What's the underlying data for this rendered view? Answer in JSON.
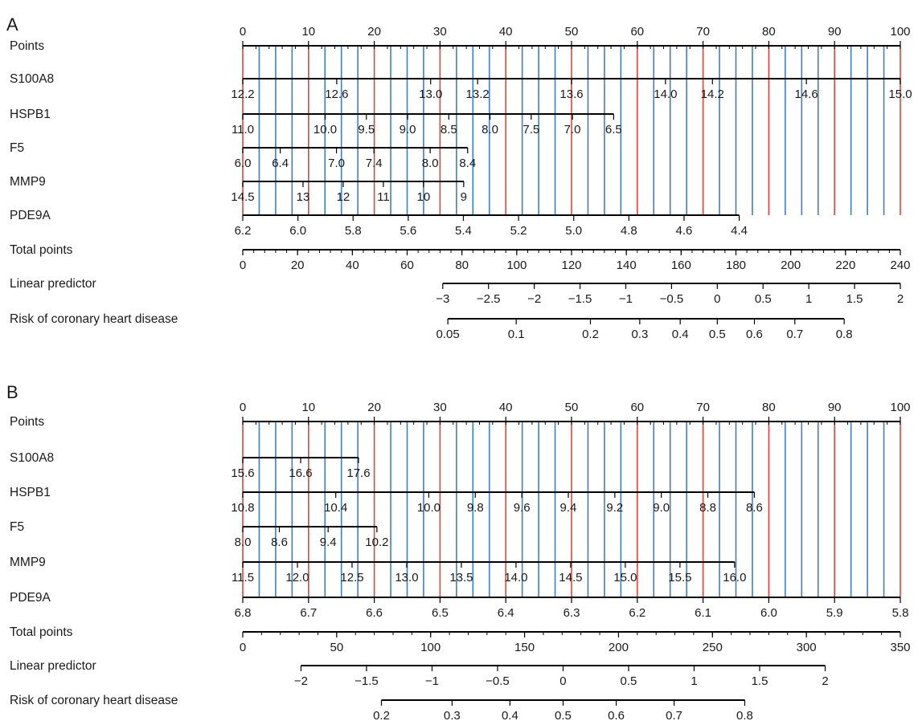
{
  "colors": {
    "axis": "#000000",
    "grid_blue": "#3f7fbf",
    "grid_red": "#e0443a",
    "text": "#1a1a1a"
  },
  "chart_data": [
    {
      "type": "nomogram",
      "panel_label": "A",
      "grid": "vertical lines at every 2.5 points (red every 10, blue otherwise)",
      "rows": [
        {
          "label": "Points",
          "kind": "points",
          "range": [
            0,
            100
          ],
          "ticks": [
            {
              "v": 0,
              "t": "0"
            },
            {
              "v": 10,
              "t": "10"
            },
            {
              "v": 20,
              "t": "20"
            },
            {
              "v": 30,
              "t": "30"
            },
            {
              "v": 40,
              "t": "40"
            },
            {
              "v": 50,
              "t": "50"
            },
            {
              "v": 60,
              "t": "60"
            },
            {
              "v": 70,
              "t": "70"
            },
            {
              "v": 80,
              "t": "80"
            },
            {
              "v": 90,
              "t": "90"
            },
            {
              "v": 100,
              "t": "100"
            }
          ]
        },
        {
          "label": "S100A8",
          "kind": "variable",
          "values": [
            12.2,
            15.0
          ],
          "points": [
            0,
            100
          ],
          "ticks": [
            {
              "v": 12.2,
              "t": "12.2"
            },
            {
              "v": 12.6,
              "t": "12.6"
            },
            {
              "v": 13.0,
              "t": "13.0"
            },
            {
              "v": 13.2,
              "t": "13.2"
            },
            {
              "v": 13.6,
              "t": "13.6"
            },
            {
              "v": 14.0,
              "t": "14.0"
            },
            {
              "v": 14.2,
              "t": "14.2"
            },
            {
              "v": 14.6,
              "t": "14.6"
            },
            {
              "v": 15.0,
              "t": "15.0"
            }
          ]
        },
        {
          "label": "HSPB1",
          "kind": "variable",
          "values": [
            11.0,
            6.5
          ],
          "points": [
            0,
            56.4
          ],
          "ticks": [
            {
              "v": 11.0,
              "t": "11.0"
            },
            {
              "v": 10.0,
              "t": "10.0"
            },
            {
              "v": 9.5,
              "t": "9.5"
            },
            {
              "v": 9.0,
              "t": "9.0"
            },
            {
              "v": 8.5,
              "t": "8.5"
            },
            {
              "v": 8.0,
              "t": "8.0"
            },
            {
              "v": 7.5,
              "t": "7.5"
            },
            {
              "v": 7.0,
              "t": "7.0"
            },
            {
              "v": 6.5,
              "t": "6.5"
            }
          ]
        },
        {
          "label": "F5",
          "kind": "variable",
          "values": [
            6.0,
            8.4
          ],
          "points": [
            0,
            34.2
          ],
          "ticks": [
            {
              "v": 6.0,
              "t": "6.0"
            },
            {
              "v": 6.4,
              "t": "6.4"
            },
            {
              "v": 7.0,
              "t": "7.0"
            },
            {
              "v": 7.4,
              "t": "7.4"
            },
            {
              "v": 8.0,
              "t": "8.0"
            },
            {
              "v": 8.4,
              "t": "8.4"
            }
          ]
        },
        {
          "label": "MMP9",
          "kind": "variable",
          "values": [
            14.5,
            9
          ],
          "points": [
            0,
            33.6
          ],
          "ticks": [
            {
              "v": 14.5,
              "t": "14.5"
            },
            {
              "v": 13,
              "t": "13"
            },
            {
              "v": 12,
              "t": "12"
            },
            {
              "v": 11,
              "t": "11"
            },
            {
              "v": 10,
              "t": "10"
            },
            {
              "v": 9,
              "t": "9"
            }
          ]
        },
        {
          "label": "PDE9A",
          "kind": "variable",
          "values": [
            6.2,
            4.4
          ],
          "points": [
            0,
            75.5
          ],
          "ticks": [
            {
              "v": 6.2,
              "t": "6.2"
            },
            {
              "v": 6.0,
              "t": "6.0"
            },
            {
              "v": 5.8,
              "t": "5.8"
            },
            {
              "v": 5.6,
              "t": "5.6"
            },
            {
              "v": 5.4,
              "t": "5.4"
            },
            {
              "v": 5.2,
              "t": "5.2"
            },
            {
              "v": 5.0,
              "t": "5.0"
            },
            {
              "v": 4.8,
              "t": "4.8"
            },
            {
              "v": 4.6,
              "t": "4.6"
            },
            {
              "v": 4.4,
              "t": "4.4"
            }
          ]
        },
        {
          "label": "Total points",
          "kind": "total",
          "range": [
            0,
            240
          ],
          "ticks": [
            {
              "v": 0,
              "t": "0"
            },
            {
              "v": 20,
              "t": "20"
            },
            {
              "v": 40,
              "t": "40"
            },
            {
              "v": 60,
              "t": "60"
            },
            {
              "v": 80,
              "t": "80"
            },
            {
              "v": 100,
              "t": "100"
            },
            {
              "v": 120,
              "t": "120"
            },
            {
              "v": 140,
              "t": "140"
            },
            {
              "v": 160,
              "t": "160"
            },
            {
              "v": 180,
              "t": "180"
            },
            {
              "v": 200,
              "t": "200"
            },
            {
              "v": 220,
              "t": "220"
            },
            {
              "v": 240,
              "t": "240"
            }
          ]
        },
        {
          "label": "Linear predictor",
          "kind": "scale",
          "values": [
            -3,
            2
          ],
          "points": [
            73,
            240
          ],
          "ticks": [
            {
              "v": -3,
              "t": "−3"
            },
            {
              "v": -2.5,
              "t": "−2.5"
            },
            {
              "v": -2,
              "t": "−2"
            },
            {
              "v": -1.5,
              "t": "−1.5"
            },
            {
              "v": -1,
              "t": "−1"
            },
            {
              "v": -0.5,
              "t": "−0.5"
            },
            {
              "v": 0,
              "t": "0"
            },
            {
              "v": 0.5,
              "t": "0.5"
            },
            {
              "v": 1,
              "t": "1"
            },
            {
              "v": 1.5,
              "t": "1.5"
            },
            {
              "v": 2,
              "t": "2"
            }
          ]
        },
        {
          "label": "Risk of coronary heart disease",
          "kind": "risk",
          "lp_range": [
            -3,
            2
          ],
          "points": [
            73,
            240
          ],
          "ticks": [
            {
              "v": 0.05,
              "t": "0.05"
            },
            {
              "v": 0.1,
              "t": "0.1"
            },
            {
              "v": 0.2,
              "t": "0.2"
            },
            {
              "v": 0.3,
              "t": "0.3"
            },
            {
              "v": 0.4,
              "t": "0.4"
            },
            {
              "v": 0.5,
              "t": "0.5"
            },
            {
              "v": 0.6,
              "t": "0.6"
            },
            {
              "v": 0.7,
              "t": "0.7"
            },
            {
              "v": 0.8,
              "t": "0.8"
            }
          ]
        }
      ]
    },
    {
      "type": "nomogram",
      "panel_label": "B",
      "grid": "vertical lines at every 2.5 points (red every 10, blue otherwise)",
      "rows": [
        {
          "label": "Points",
          "kind": "points",
          "range": [
            0,
            100
          ],
          "ticks": [
            {
              "v": 0,
              "t": "0"
            },
            {
              "v": 10,
              "t": "10"
            },
            {
              "v": 20,
              "t": "20"
            },
            {
              "v": 30,
              "t": "30"
            },
            {
              "v": 40,
              "t": "40"
            },
            {
              "v": 50,
              "t": "50"
            },
            {
              "v": 60,
              "t": "60"
            },
            {
              "v": 70,
              "t": "70"
            },
            {
              "v": 80,
              "t": "80"
            },
            {
              "v": 90,
              "t": "90"
            },
            {
              "v": 100,
              "t": "100"
            }
          ]
        },
        {
          "label": "S100A8",
          "kind": "variable",
          "values": [
            15.6,
            17.6
          ],
          "points": [
            0,
            17.6
          ],
          "ticks": [
            {
              "v": 15.6,
              "t": "15.6"
            },
            {
              "v": 16.6,
              "t": "16.6"
            },
            {
              "v": 17.6,
              "t": "17.6"
            }
          ]
        },
        {
          "label": "HSPB1",
          "kind": "variable",
          "values": [
            10.8,
            8.6
          ],
          "points": [
            0,
            77.8
          ],
          "ticks": [
            {
              "v": 10.8,
              "t": "10.8"
            },
            {
              "v": 10.4,
              "t": "10.4"
            },
            {
              "v": 10.0,
              "t": "10.0"
            },
            {
              "v": 9.8,
              "t": "9.8"
            },
            {
              "v": 9.6,
              "t": "9.6"
            },
            {
              "v": 9.4,
              "t": "9.4"
            },
            {
              "v": 9.2,
              "t": "9.2"
            },
            {
              "v": 9.0,
              "t": "9.0"
            },
            {
              "v": 8.8,
              "t": "8.8"
            },
            {
              "v": 8.6,
              "t": "8.6"
            }
          ]
        },
        {
          "label": "F5",
          "kind": "variable",
          "values": [
            8.0,
            10.2
          ],
          "points": [
            0,
            20.4
          ],
          "ticks": [
            {
              "v": 8.0,
              "t": "8.0"
            },
            {
              "v": 8.6,
              "t": "8.6"
            },
            {
              "v": 9.4,
              "t": "9.4"
            },
            {
              "v": 10.2,
              "t": "10.2"
            }
          ]
        },
        {
          "label": "MMP9",
          "kind": "variable",
          "values": [
            11.5,
            16.0
          ],
          "points": [
            0,
            74.8
          ],
          "ticks": [
            {
              "v": 11.5,
              "t": "11.5"
            },
            {
              "v": 12.0,
              "t": "12.0"
            },
            {
              "v": 12.5,
              "t": "12.5"
            },
            {
              "v": 13.0,
              "t": "13.0"
            },
            {
              "v": 13.5,
              "t": "13.5"
            },
            {
              "v": 14.0,
              "t": "14.0"
            },
            {
              "v": 14.5,
              "t": "14.5"
            },
            {
              "v": 15.0,
              "t": "15.0"
            },
            {
              "v": 15.5,
              "t": "15.5"
            },
            {
              "v": 16.0,
              "t": "16.0"
            }
          ]
        },
        {
          "label": "PDE9A",
          "kind": "variable",
          "values": [
            6.8,
            5.8
          ],
          "points": [
            0,
            100
          ],
          "ticks": [
            {
              "v": 6.8,
              "t": "6.8"
            },
            {
              "v": 6.7,
              "t": "6.7"
            },
            {
              "v": 6.6,
              "t": "6.6"
            },
            {
              "v": 6.5,
              "t": "6.5"
            },
            {
              "v": 6.4,
              "t": "6.4"
            },
            {
              "v": 6.3,
              "t": "6.3"
            },
            {
              "v": 6.2,
              "t": "6.2"
            },
            {
              "v": 6.1,
              "t": "6.1"
            },
            {
              "v": 6.0,
              "t": "6.0"
            },
            {
              "v": 5.9,
              "t": "5.9"
            },
            {
              "v": 5.8,
              "t": "5.8"
            }
          ]
        },
        {
          "label": "Total points",
          "kind": "total",
          "range": [
            0,
            350
          ],
          "ticks": [
            {
              "v": 0,
              "t": "0"
            },
            {
              "v": 50,
              "t": "50"
            },
            {
              "v": 100,
              "t": "100"
            },
            {
              "v": 150,
              "t": "150"
            },
            {
              "v": 200,
              "t": "200"
            },
            {
              "v": 250,
              "t": "250"
            },
            {
              "v": 300,
              "t": "300"
            },
            {
              "v": 350,
              "t": "350"
            }
          ]
        },
        {
          "label": "Linear predictor",
          "kind": "scale",
          "values": [
            -2,
            2
          ],
          "points": [
            31,
            310
          ],
          "ticks": [
            {
              "v": -2,
              "t": "−2"
            },
            {
              "v": -1.5,
              "t": "−1.5"
            },
            {
              "v": -1,
              "t": "−1"
            },
            {
              "v": -0.5,
              "t": "−0.5"
            },
            {
              "v": 0,
              "t": "0"
            },
            {
              "v": 0.5,
              "t": "0.5"
            },
            {
              "v": 1,
              "t": "1"
            },
            {
              "v": 1.5,
              "t": "1.5"
            },
            {
              "v": 2,
              "t": "2"
            }
          ]
        },
        {
          "label": "Risk of coronary heart disease",
          "kind": "risk",
          "lp_range": [
            -2,
            2
          ],
          "points": [
            31,
            310
          ],
          "ticks": [
            {
              "v": 0.2,
              "t": "0.2"
            },
            {
              "v": 0.3,
              "t": "0.3"
            },
            {
              "v": 0.4,
              "t": "0.4"
            },
            {
              "v": 0.5,
              "t": "0.5"
            },
            {
              "v": 0.6,
              "t": "0.6"
            },
            {
              "v": 0.7,
              "t": "0.7"
            },
            {
              "v": 0.8,
              "t": "0.8"
            }
          ]
        }
      ]
    }
  ]
}
